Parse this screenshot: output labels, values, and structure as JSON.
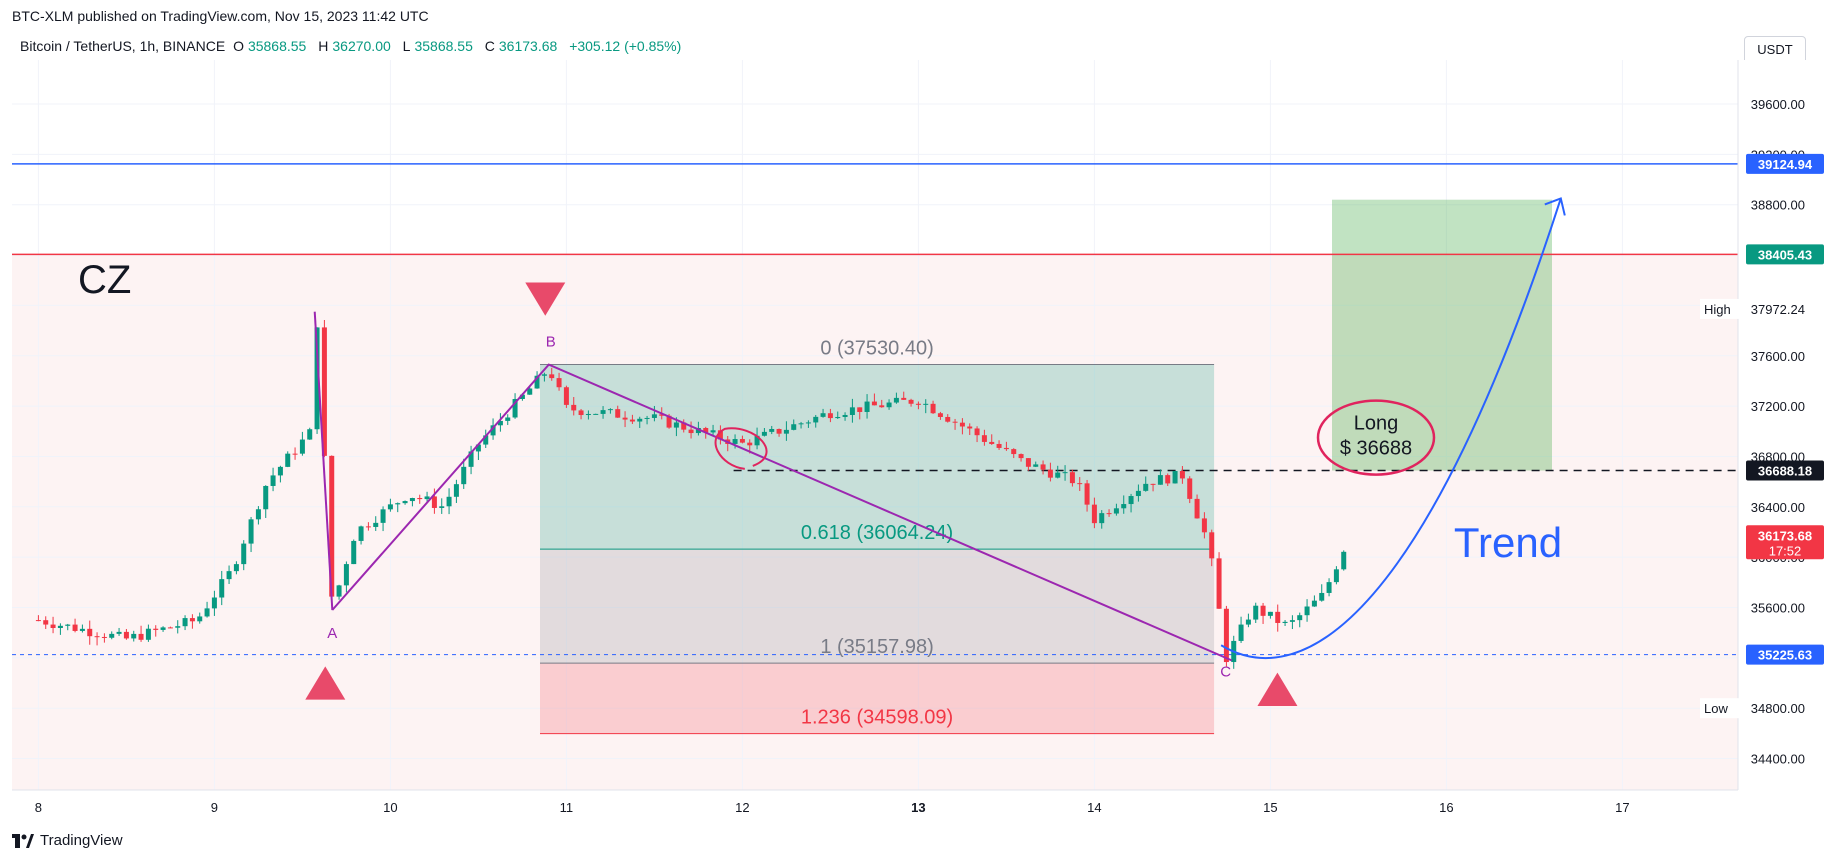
{
  "header": {
    "published": "BTC-XLM published on TradingView.com, Nov 15, 2023 11:42 UTC",
    "symbol": "Bitcoin / TetherUS, 1h, BINANCE",
    "ohlc": [
      {
        "k": "O",
        "v": "35868.55"
      },
      {
        "k": "H",
        "v": "36270.00"
      },
      {
        "k": "L",
        "v": "35868.55"
      },
      {
        "k": "C",
        "v": "36173.68"
      }
    ],
    "change": "+305.12 (+0.85%)",
    "currency": "USDT"
  },
  "footer": {
    "brand": "TradingView"
  },
  "colors": {
    "up": "#089981",
    "down": "#f23645",
    "pattern": "#9c27b0",
    "trend": "#2962ff",
    "fib_green": "#089981",
    "fib_red": "#f23645"
  },
  "chart_data": {
    "type": "candlestick",
    "x_ticks": [
      "8",
      "9",
      "10",
      "11",
      "12",
      "13",
      "14",
      "15",
      "16",
      "17"
    ],
    "y_ticks": [
      "34400.00",
      "34800.00",
      "35200.00",
      "35600.00",
      "36000.00",
      "36400.00",
      "36800.00",
      "37200.00",
      "37600.00",
      "38000.00",
      "38400.00",
      "38800.00",
      "39200.00",
      "39600.00"
    ],
    "ylim": [
      34150,
      39950
    ],
    "price_labels": [
      {
        "label": "39124.94",
        "value": 39124.94,
        "color": "#2962ff"
      },
      {
        "label": "38405.43",
        "value": 38405.43,
        "color": "#089981"
      },
      {
        "tag": "High",
        "label": "37972.24",
        "value": 37972.24
      },
      {
        "label": "36688.18",
        "value": 36688.18,
        "color": "#131722"
      },
      {
        "label": "36173.68",
        "value": 36173.68,
        "color": "#f23645",
        "sub": "17:52"
      },
      {
        "label": "35225.63",
        "value": 35225.63,
        "color": "#2962ff"
      },
      {
        "tag": "Low",
        "label": "34800.00",
        "value": 34800.0
      }
    ],
    "horizontal_lines": [
      {
        "value": 39124.94,
        "color": "#2962ff"
      },
      {
        "value": 38405.43,
        "color": "#f23645"
      },
      {
        "value": 36688.18,
        "color": "#131722",
        "style": "dashed"
      },
      {
        "value": 35225.63,
        "color": "#2962ff",
        "style": "dotted"
      }
    ],
    "fib_levels": [
      {
        "label": "0 (37530.40)",
        "value": 37530.4,
        "color": "#787b86"
      },
      {
        "label": "0.618 (36064.24)",
        "value": 36064.24,
        "color": "#089981"
      },
      {
        "label": "1 (35157.98)",
        "value": 35157.98,
        "color": "#787b86"
      },
      {
        "label": "1.236 (34598.09)",
        "value": 34598.09,
        "color": "#f23645"
      }
    ],
    "pattern_points": [
      {
        "label": "A",
        "day": 9.67,
        "value": 35580
      },
      {
        "label": "B",
        "day": 10.9,
        "value": 37530
      },
      {
        "label": "C",
        "day": 14.78,
        "value": 35180
      }
    ],
    "annotations": {
      "cz": "CZ",
      "long_label": "Long",
      "long_price": "$ 36688",
      "trend": "Trend"
    },
    "position_target": {
      "from": 36688.18,
      "to": 38840
    },
    "anchors": [
      {
        "day": 8.0,
        "value": 35500
      },
      {
        "day": 8.5,
        "value": 35350
      },
      {
        "day": 8.9,
        "value": 35500
      },
      {
        "day": 9.1,
        "value": 35900
      },
      {
        "day": 9.3,
        "value": 36600
      },
      {
        "day": 9.55,
        "value": 37000
      },
      {
        "day": 9.58,
        "value": 37950
      },
      {
        "day": 9.67,
        "value": 35600
      },
      {
        "day": 9.8,
        "value": 36200
      },
      {
        "day": 10.1,
        "value": 36500
      },
      {
        "day": 10.3,
        "value": 36400
      },
      {
        "day": 10.5,
        "value": 36900
      },
      {
        "day": 10.9,
        "value": 37500
      },
      {
        "day": 11.0,
        "value": 37180
      },
      {
        "day": 11.5,
        "value": 37100
      },
      {
        "day": 12.0,
        "value": 36900
      },
      {
        "day": 12.5,
        "value": 37150
      },
      {
        "day": 13.0,
        "value": 37250
      },
      {
        "day": 13.3,
        "value": 37000
      },
      {
        "day": 13.6,
        "value": 36750
      },
      {
        "day": 13.9,
        "value": 36600
      },
      {
        "day": 14.0,
        "value": 36300
      },
      {
        "day": 14.3,
        "value": 36600
      },
      {
        "day": 14.5,
        "value": 36650
      },
      {
        "day": 14.65,
        "value": 36100
      },
      {
        "day": 14.75,
        "value": 35200
      },
      {
        "day": 14.9,
        "value": 35600
      },
      {
        "day": 15.1,
        "value": 35450
      },
      {
        "day": 15.3,
        "value": 35700
      },
      {
        "day": 15.45,
        "value": 36170
      }
    ]
  }
}
